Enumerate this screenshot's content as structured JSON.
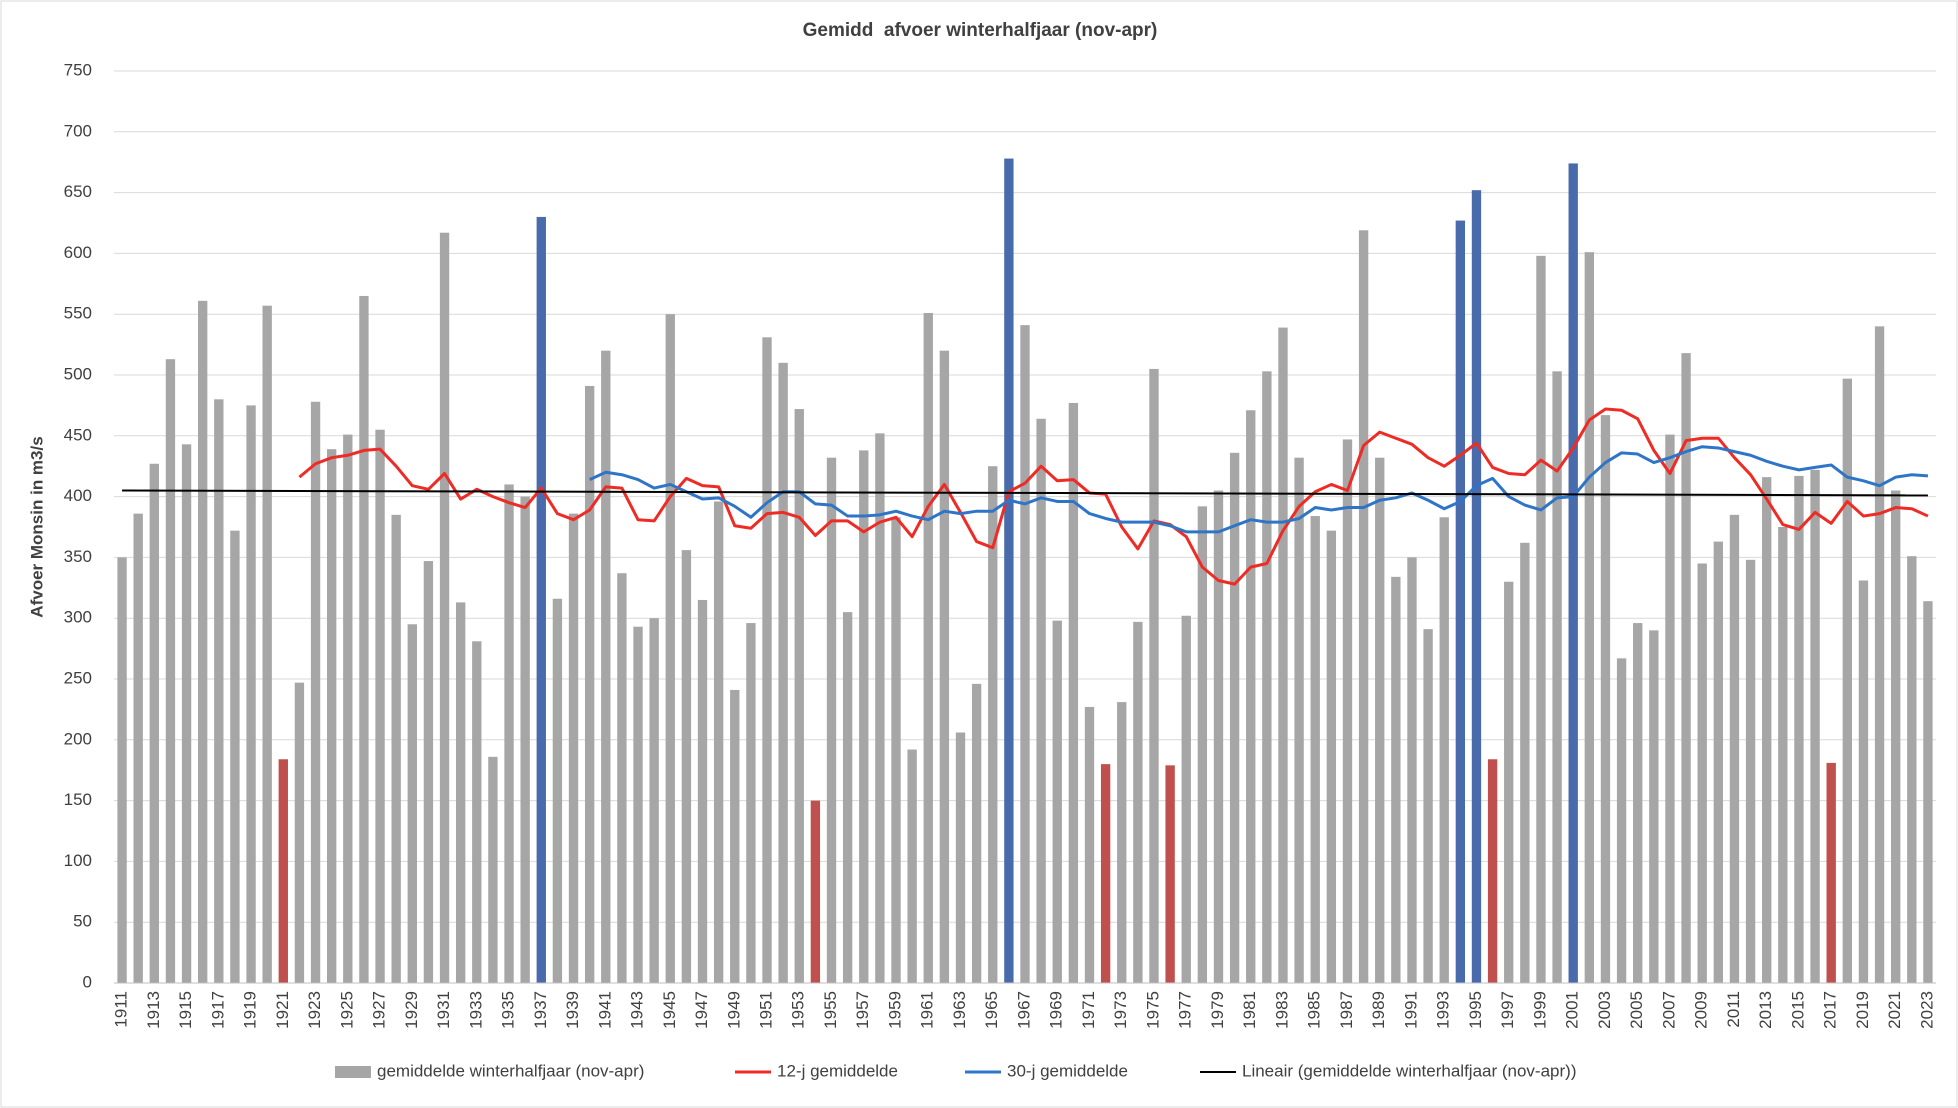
{
  "chart_data": {
    "type": "bar",
    "title": "Gemidd  afvoer winterhalfjaar (nov-apr)",
    "y_label": "Afvoer Monsin in m3/s",
    "categories": [
      "1911",
      null,
      "1913",
      null,
      "1915",
      null,
      "1917",
      null,
      "1919",
      null,
      "1921",
      null,
      "1923",
      null,
      "1925",
      null,
      "1927",
      null,
      "1929",
      null,
      "1931",
      null,
      "1933",
      null,
      "1935",
      null,
      "1937",
      null,
      "1939",
      null,
      "1941",
      null,
      "1943",
      null,
      "1945",
      null,
      "1947",
      null,
      "1949",
      null,
      "1951",
      null,
      "1953",
      null,
      "1955",
      null,
      "1957",
      null,
      "1959",
      null,
      "1961",
      null,
      "1963",
      null,
      "1965",
      null,
      "1967",
      null,
      "1969",
      null,
      "1971",
      null,
      "1973",
      null,
      "1975",
      null,
      "1977",
      null,
      "1979",
      null,
      "1981",
      null,
      "1983",
      null,
      "1985",
      null,
      "1987",
      null,
      "1989",
      null,
      "1991",
      null,
      "1993",
      null,
      "1995",
      null,
      "1997",
      null,
      "1999",
      null,
      "2001",
      null,
      "2003",
      null,
      "2005",
      null,
      "2007",
      null,
      "2009",
      null,
      "2011",
      null,
      "2013",
      null,
      "2015",
      null,
      "2017",
      null,
      "2019",
      null,
      "2021",
      null,
      "2023"
    ],
    "series": [
      {
        "name": "gemiddelde winterhalfjaar (nov-apr)",
        "type": "bar",
        "color": "#a6a6a6",
        "values": [
          350,
          386,
          427,
          513,
          443,
          561,
          480,
          372,
          475,
          557,
          184,
          247,
          478,
          439,
          451,
          565,
          455,
          385,
          295,
          347,
          617,
          313,
          281,
          186,
          410,
          400,
          630,
          316,
          386,
          491,
          520,
          337,
          293,
          300,
          550,
          356,
          315,
          396,
          241,
          296,
          531,
          510,
          472,
          150,
          432,
          305,
          438,
          452,
          383,
          192,
          551,
          520,
          206,
          246,
          425,
          678,
          541,
          464,
          298,
          477,
          227,
          180,
          231,
          297,
          505,
          179,
          302,
          392,
          405,
          436,
          471,
          503,
          539,
          432,
          384,
          372,
          447,
          619,
          432,
          334,
          350,
          291,
          383,
          627,
          652,
          184,
          330,
          362,
          598,
          503,
          674,
          601,
          467,
          267,
          296,
          290,
          451,
          518,
          345,
          363,
          385,
          348,
          416,
          375,
          417,
          422,
          181,
          497,
          331,
          540,
          405,
          351,
          314
        ],
        "colors": [
          "#a6a6a6",
          "#a6a6a6",
          "#a6a6a6",
          "#a6a6a6",
          "#a6a6a6",
          "#a6a6a6",
          "#a6a6a6",
          "#a6a6a6",
          "#a6a6a6",
          "#a6a6a6",
          "#c0504d",
          "#a6a6a6",
          "#a6a6a6",
          "#a6a6a6",
          "#a6a6a6",
          "#a6a6a6",
          "#a6a6a6",
          "#a6a6a6",
          "#a6a6a6",
          "#a6a6a6",
          "#a6a6a6",
          "#a6a6a6",
          "#a6a6a6",
          "#a6a6a6",
          "#a6a6a6",
          "#a6a6a6",
          "#4a6bab",
          "#a6a6a6",
          "#a6a6a6",
          "#a6a6a6",
          "#a6a6a6",
          "#a6a6a6",
          "#a6a6a6",
          "#a6a6a6",
          "#a6a6a6",
          "#a6a6a6",
          "#a6a6a6",
          "#a6a6a6",
          "#a6a6a6",
          "#a6a6a6",
          "#a6a6a6",
          "#a6a6a6",
          "#a6a6a6",
          "#c0504d",
          "#a6a6a6",
          "#a6a6a6",
          "#a6a6a6",
          "#a6a6a6",
          "#a6a6a6",
          "#a6a6a6",
          "#a6a6a6",
          "#a6a6a6",
          "#a6a6a6",
          "#a6a6a6",
          "#a6a6a6",
          "#4a6bab",
          "#a6a6a6",
          "#a6a6a6",
          "#a6a6a6",
          "#a6a6a6",
          "#a6a6a6",
          "#c0504d",
          "#a6a6a6",
          "#a6a6a6",
          "#a6a6a6",
          "#c0504d",
          "#a6a6a6",
          "#a6a6a6",
          "#a6a6a6",
          "#a6a6a6",
          "#a6a6a6",
          "#a6a6a6",
          "#a6a6a6",
          "#a6a6a6",
          "#a6a6a6",
          "#a6a6a6",
          "#a6a6a6",
          "#a6a6a6",
          "#a6a6a6",
          "#a6a6a6",
          "#a6a6a6",
          "#a6a6a6",
          "#a6a6a6",
          "#4a6bab",
          "#4a6bab",
          "#c0504d",
          "#a6a6a6",
          "#a6a6a6",
          "#a6a6a6",
          "#a6a6a6",
          "#4a6bab",
          "#a6a6a6",
          "#a6a6a6",
          "#a6a6a6",
          "#a6a6a6",
          "#a6a6a6",
          "#a6a6a6",
          "#a6a6a6",
          "#a6a6a6",
          "#a6a6a6",
          "#a6a6a6",
          "#a6a6a6",
          "#a6a6a6",
          "#a6a6a6",
          "#a6a6a6",
          "#a6a6a6",
          "#c0504d",
          "#a6a6a6",
          "#a6a6a6",
          "#a6a6a6",
          "#a6a6a6",
          "#a6a6a6",
          "#a6a6a6"
        ]
      },
      {
        "name": "12-j gemiddelde",
        "type": "line",
        "color": "#ee2b24",
        "values": [
          null,
          null,
          null,
          null,
          null,
          null,
          null,
          null,
          null,
          null,
          null,
          416,
          427,
          432,
          434,
          438,
          439,
          425,
          409,
          406,
          419,
          398,
          406,
          400,
          395,
          391,
          407,
          386,
          381,
          389,
          408,
          407,
          381,
          380,
          400,
          415,
          409,
          408,
          376,
          374,
          386,
          387,
          383,
          368,
          380,
          380,
          371,
          379,
          383,
          367,
          392,
          410,
          387,
          363,
          358,
          404,
          411,
          425,
          413,
          414,
          403,
          402,
          375,
          357,
          380,
          377,
          367,
          342,
          331,
          328,
          342,
          345,
          372,
          392,
          404,
          410,
          405,
          442,
          453,
          448,
          443,
          432,
          425,
          434,
          444,
          424,
          419,
          418,
          430,
          421,
          440,
          463,
          472,
          471,
          464,
          438,
          419,
          446,
          448,
          448,
          432,
          418,
          398,
          377,
          373,
          387,
          378,
          396,
          384,
          386,
          391,
          390,
          384
        ]
      },
      {
        "name": "30-j gemiddelde",
        "type": "line",
        "color": "#2e75c8",
        "values": [
          null,
          null,
          null,
          null,
          null,
          null,
          null,
          null,
          null,
          null,
          null,
          null,
          null,
          null,
          null,
          null,
          null,
          null,
          null,
          null,
          null,
          null,
          null,
          null,
          null,
          null,
          null,
          null,
          null,
          414,
          420,
          418,
          414,
          407,
          410,
          404,
          398,
          399,
          392,
          383,
          395,
          404,
          404,
          394,
          393,
          384,
          384,
          385,
          388,
          384,
          381,
          388,
          386,
          388,
          388,
          397,
          394,
          399,
          396,
          396,
          386,
          382,
          379,
          379,
          379,
          376,
          371,
          371,
          371,
          376,
          381,
          379,
          379,
          382,
          391,
          389,
          391,
          391,
          397,
          399,
          403,
          397,
          390,
          396,
          409,
          415,
          400,
          393,
          389,
          399,
          400,
          416,
          428,
          436,
          435,
          428,
          432,
          437,
          441,
          440,
          437,
          434,
          429,
          425,
          422,
          424,
          426,
          416,
          413,
          409,
          416,
          418,
          417
        ]
      },
      {
        "name": "Lineair (gemiddelde winterhalfjaar (nov-apr))",
        "type": "trend",
        "color": "#000000",
        "x": [
          "1911",
          "2023"
        ],
        "values": [
          405,
          401
        ]
      }
    ],
    "ylim": [
      0,
      750
    ],
    "yticks": [
      0,
      50,
      100,
      150,
      200,
      250,
      300,
      350,
      400,
      450,
      500,
      550,
      600,
      650,
      700,
      750
    ],
    "grid": true
  }
}
